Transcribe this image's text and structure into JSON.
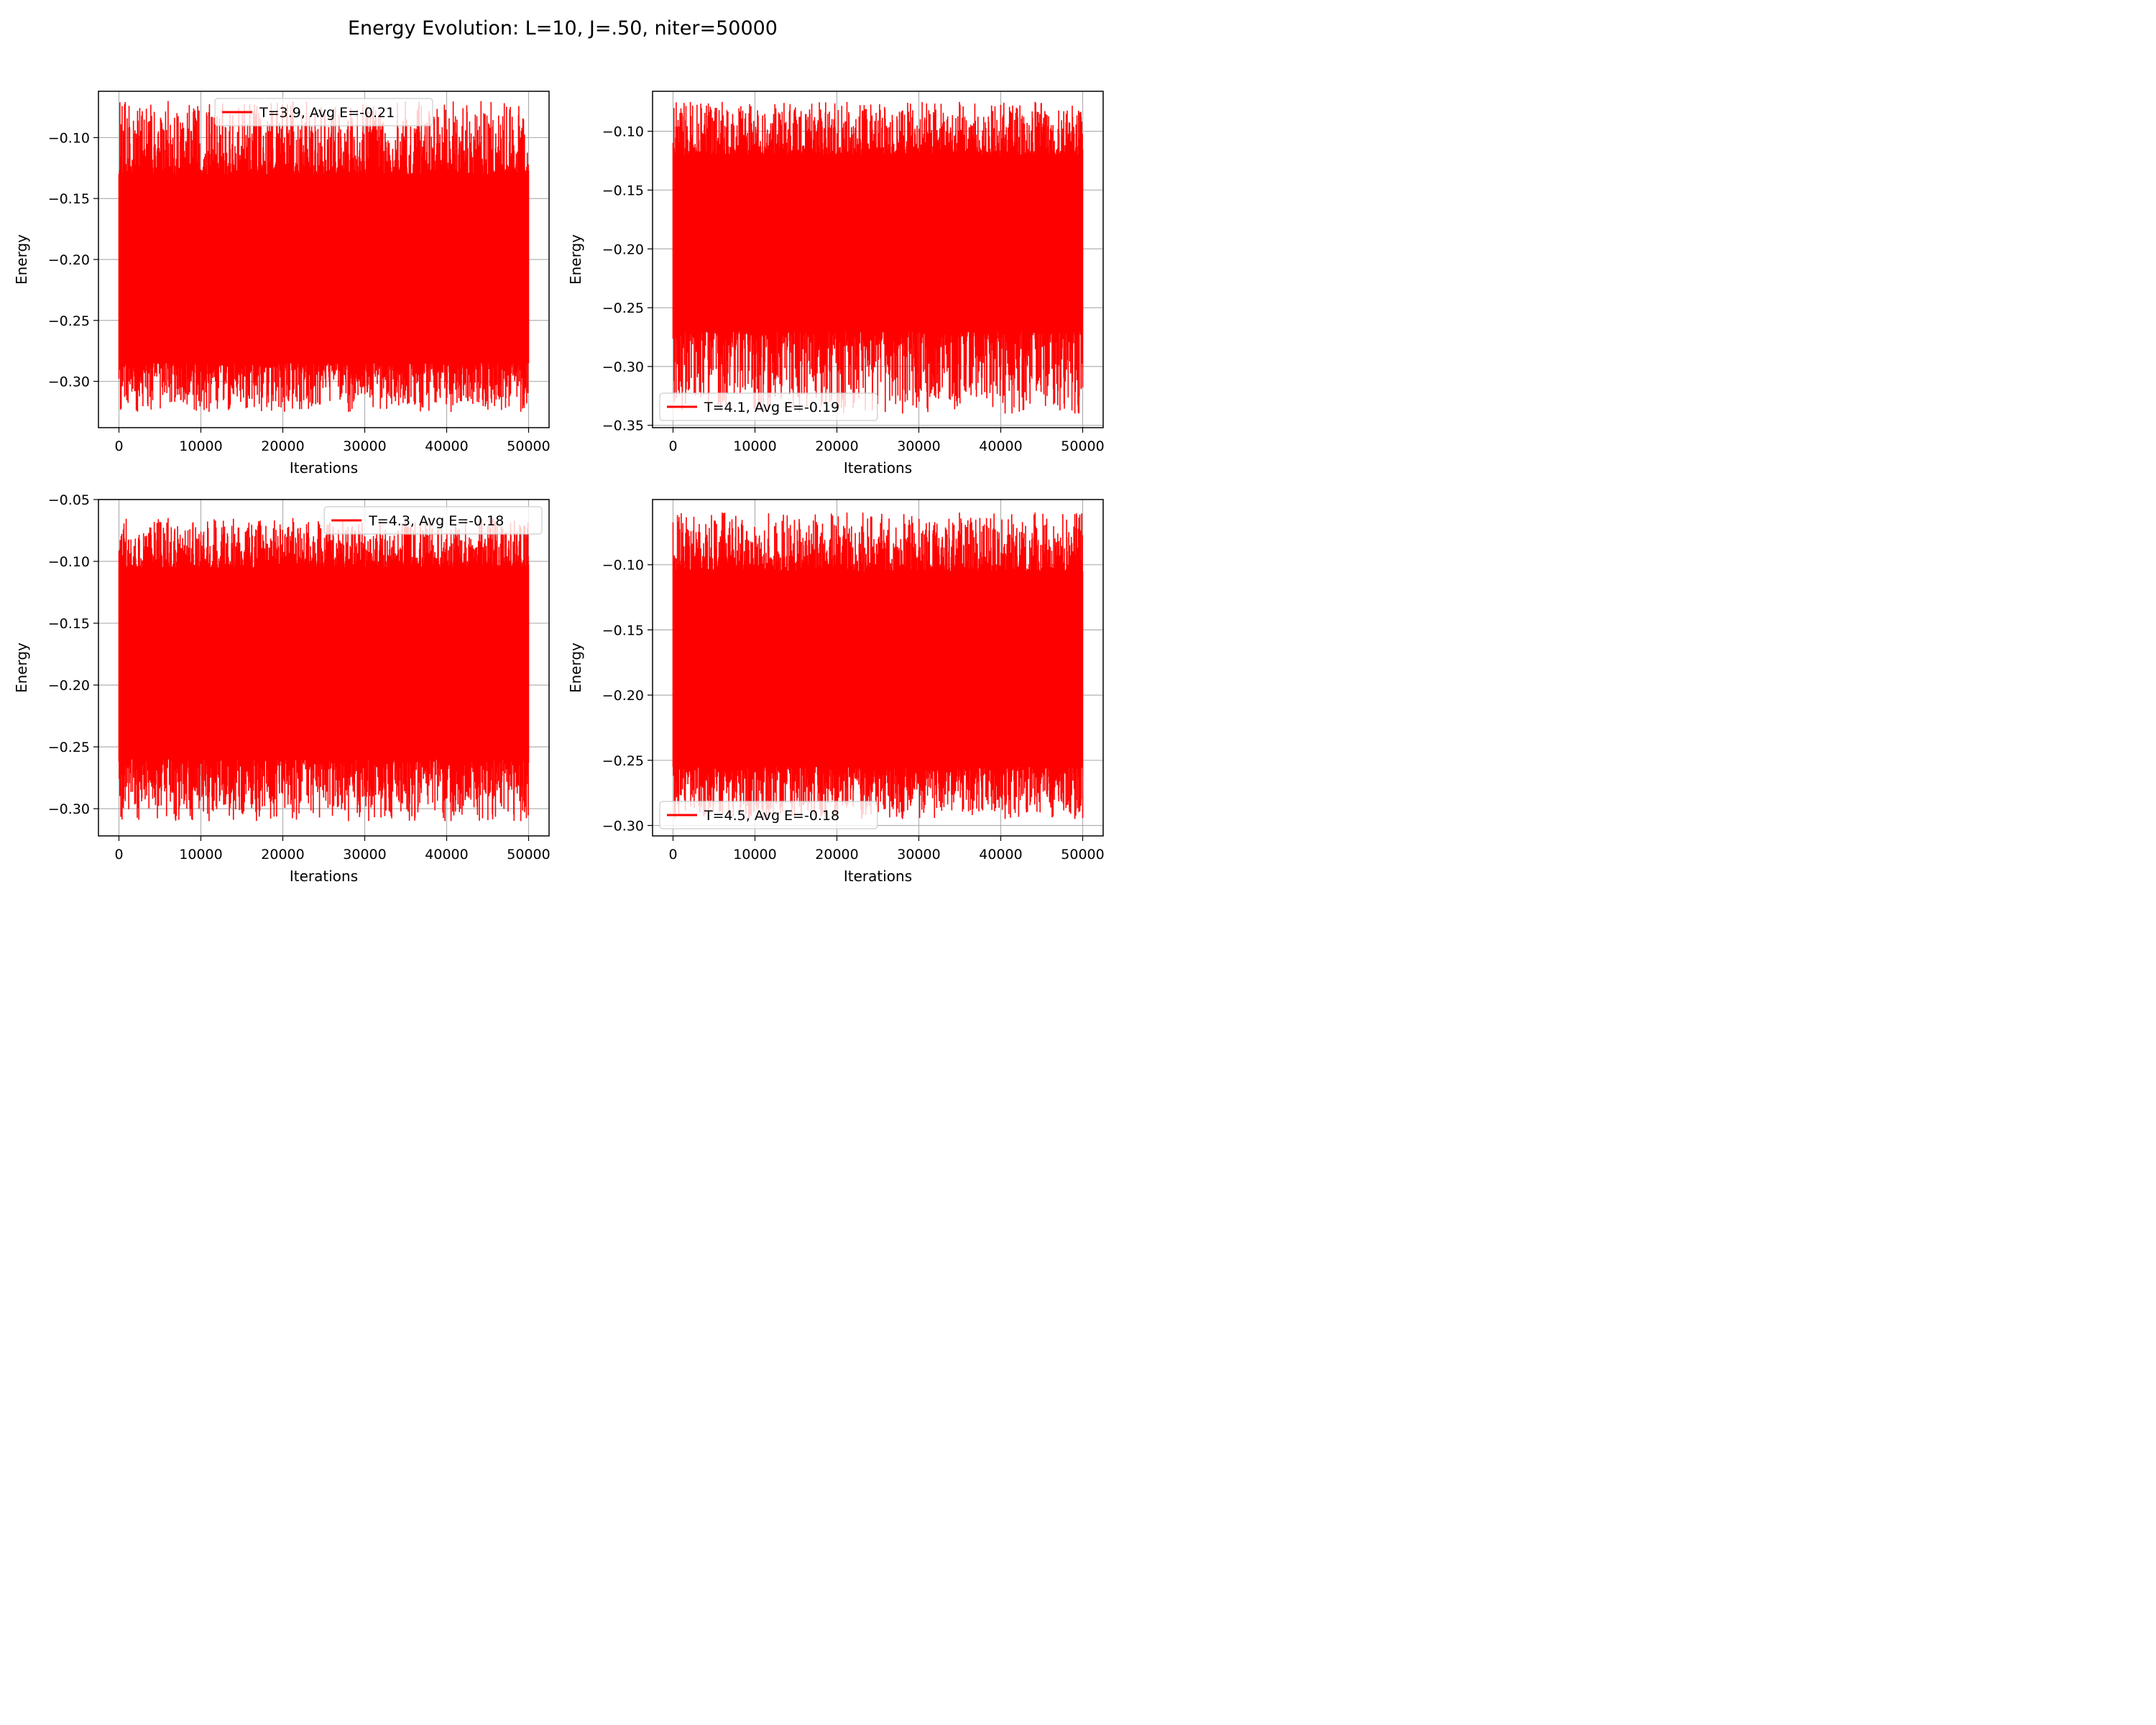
{
  "figure": {
    "title": "Energy Evolution: L=10, J=.50, niter=50000",
    "line_color": "#ff0000"
  },
  "chart_data": [
    {
      "type": "line",
      "series": [
        {
          "name": "T=3.9, Avg E=-0.21"
        }
      ],
      "xlabel": "Iterations",
      "ylabel": "Energy",
      "xlim": [
        -2500,
        52500
      ],
      "ylim": [
        -0.338,
        -0.062
      ],
      "xticks": [
        0,
        10000,
        20000,
        30000,
        40000,
        50000
      ],
      "xtick_labels": [
        "0",
        "10000",
        "20000",
        "30000",
        "40000",
        "50000"
      ],
      "yticks": [
        -0.3,
        -0.25,
        -0.2,
        -0.15,
        -0.1
      ],
      "ytick_labels": [
        "−0.30",
        "−0.25",
        "−0.20",
        "−0.15",
        "−0.10"
      ],
      "grid": true,
      "legend_loc": "upper-center",
      "band": {
        "n_points": 50000,
        "mean": -0.21,
        "core_low": -0.285,
        "core_high": -0.13,
        "min": -0.325,
        "max": -0.07
      }
    },
    {
      "type": "line",
      "series": [
        {
          "name": "T=4.1, Avg E=-0.19"
        }
      ],
      "xlabel": "Iterations",
      "ylabel": "Energy",
      "xlim": [
        -2500,
        52500
      ],
      "ylim": [
        -0.352,
        -0.066
      ],
      "xticks": [
        0,
        10000,
        20000,
        30000,
        40000,
        50000
      ],
      "xtick_labels": [
        "0",
        "10000",
        "20000",
        "30000",
        "40000",
        "50000"
      ],
      "yticks": [
        -0.35,
        -0.3,
        -0.25,
        -0.2,
        -0.15,
        -0.1
      ],
      "ytick_labels": [
        "−0.35",
        "−0.30",
        "−0.25",
        "−0.20",
        "−0.15",
        "−0.10"
      ],
      "grid": true,
      "legend_loc": "lower-left",
      "band": {
        "n_points": 50000,
        "mean": -0.19,
        "core_low": -0.27,
        "core_high": -0.12,
        "min": -0.34,
        "max": -0.075
      }
    },
    {
      "type": "line",
      "series": [
        {
          "name": "T=4.3, Avg E=-0.18"
        }
      ],
      "xlabel": "Iterations",
      "ylabel": "Energy",
      "xlim": [
        -2500,
        52500
      ],
      "ylim": [
        -0.322,
        -0.05
      ],
      "xticks": [
        0,
        10000,
        20000,
        30000,
        40000,
        50000
      ],
      "xtick_labels": [
        "0",
        "10000",
        "20000",
        "30000",
        "40000",
        "50000"
      ],
      "yticks": [
        -0.3,
        -0.25,
        -0.2,
        -0.15,
        -0.1,
        -0.05
      ],
      "ytick_labels": [
        "−0.30",
        "−0.25",
        "−0.20",
        "−0.15",
        "−0.10",
        "−0.05"
      ],
      "grid": true,
      "legend_loc": "upper-right",
      "band": {
        "n_points": 50000,
        "mean": -0.18,
        "core_low": -0.26,
        "core_high": -0.105,
        "min": -0.31,
        "max": -0.065
      }
    },
    {
      "type": "line",
      "series": [
        {
          "name": "T=4.5, Avg E=-0.18"
        }
      ],
      "xlabel": "Iterations",
      "ylabel": "Energy",
      "xlim": [
        -2500,
        52500
      ],
      "ylim": [
        -0.308,
        -0.05
      ],
      "xticks": [
        0,
        10000,
        20000,
        30000,
        40000,
        50000
      ],
      "xtick_labels": [
        "0",
        "10000",
        "20000",
        "30000",
        "40000",
        "50000"
      ],
      "yticks": [
        -0.3,
        -0.25,
        -0.2,
        -0.15,
        -0.1
      ],
      "ytick_labels": [
        "−0.30",
        "−0.25",
        "−0.20",
        "−0.15",
        "−0.10"
      ],
      "grid": true,
      "legend_loc": "lower-left",
      "band": {
        "n_points": 50000,
        "mean": -0.18,
        "core_low": -0.255,
        "core_high": -0.105,
        "min": -0.295,
        "max": -0.06
      }
    }
  ]
}
